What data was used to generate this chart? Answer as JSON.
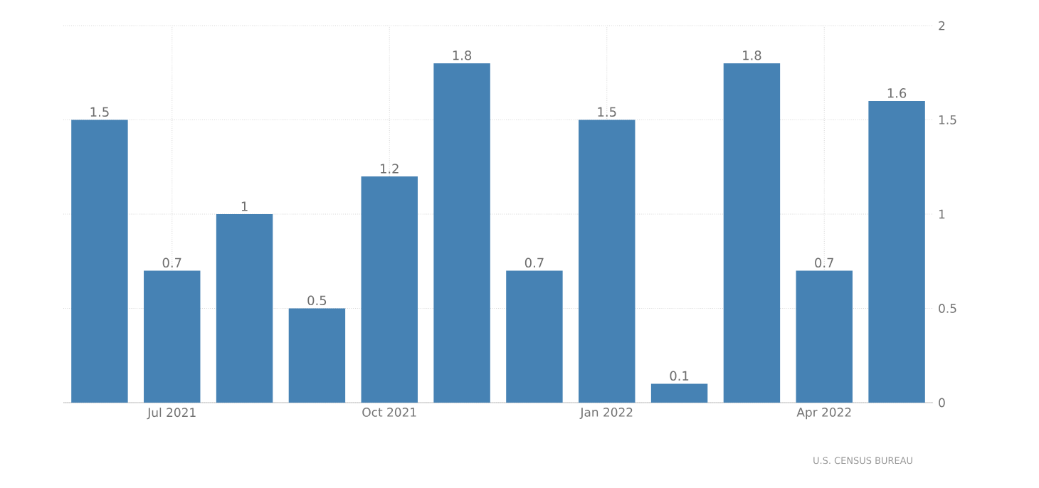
{
  "chart_data": {
    "type": "bar",
    "categories": [
      null,
      "Jul 2021",
      null,
      null,
      "Oct 2021",
      null,
      null,
      "Jan 2022",
      null,
      null,
      "Apr 2022",
      null
    ],
    "values": [
      1.5,
      0.7,
      1,
      0.5,
      1.2,
      1.8,
      0.7,
      1.5,
      0.1,
      1.8,
      0.7,
      1.6
    ],
    "color": "#4682b4",
    "ylim": [
      0,
      2
    ],
    "yticks": [
      0,
      0.5,
      1,
      1.5,
      2
    ],
    "grid": true,
    "data_labels": true,
    "annotations": [
      "U.S. CENSUS BUREAU"
    ]
  }
}
